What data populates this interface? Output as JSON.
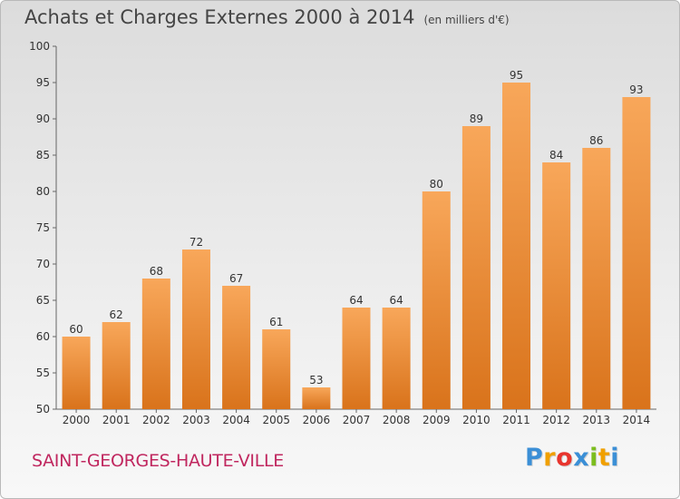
{
  "chart_data": {
    "type": "bar",
    "title": "Achats et Charges Externes 2000 à 2014",
    "unit": "(en milliers d'€)",
    "categories": [
      "2000",
      "2001",
      "2002",
      "2003",
      "2004",
      "2005",
      "2006",
      "2007",
      "2008",
      "2009",
      "2010",
      "2011",
      "2012",
      "2013",
      "2014"
    ],
    "values": [
      60,
      62,
      68,
      72,
      67,
      61,
      53,
      64,
      64,
      80,
      89,
      95,
      84,
      86,
      93
    ],
    "ylim": [
      50,
      100
    ],
    "yticks": [
      50,
      55,
      60,
      65,
      70,
      75,
      80,
      85,
      90,
      95,
      100
    ],
    "grid": false,
    "bar_color_light": "#f8a75a",
    "bar_color_dark": "#d9731b"
  },
  "commune": "SAINT-GEORGES-HAUTE-VILLE",
  "logo": {
    "letters": [
      "P",
      "r",
      "o",
      "x",
      "i",
      "t",
      "i"
    ],
    "colors": [
      "#3b8fd6",
      "#f0a000",
      "#e8352e",
      "#3b8fd6",
      "#7cbd1e",
      "#f0a000",
      "#3b8fd6"
    ]
  }
}
